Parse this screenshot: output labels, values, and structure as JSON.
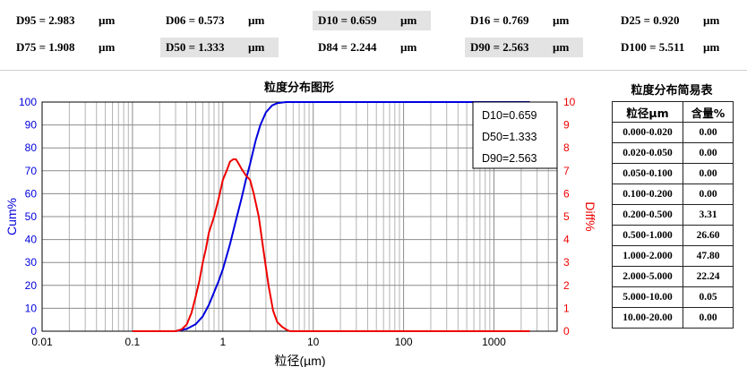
{
  "stats": [
    {
      "label": "D95 = 2.983",
      "unit": "µm",
      "highlight": false
    },
    {
      "label": "D06 = 0.573",
      "unit": "µm",
      "highlight": false
    },
    {
      "label": "D10 = 0.659",
      "unit": "µm",
      "highlight": true
    },
    {
      "label": "D16 = 0.769",
      "unit": "µm",
      "highlight": false
    },
    {
      "label": "D25 = 0.920",
      "unit": "µm",
      "highlight": false
    },
    {
      "label": "D75 = 1.908",
      "unit": "µm",
      "highlight": false
    },
    {
      "label": "D50 = 1.333",
      "unit": "µm",
      "highlight": true
    },
    {
      "label": "D84 = 2.244",
      "unit": "µm",
      "highlight": false
    },
    {
      "label": "D90 = 2.563",
      "unit": "µm",
      "highlight": true
    },
    {
      "label": "D100 = 5.511",
      "unit": "µm",
      "highlight": false
    }
  ],
  "chart_data": {
    "type": "line",
    "title": "粒度分布图形",
    "xlabel": "粒径(µm)",
    "ylabel_left": "Cum%",
    "ylabel_right": "Diff%",
    "x_scale": "log",
    "xlim": [
      0.01,
      5000
    ],
    "x_ticks": [
      "0.01",
      "0.1",
      "1",
      "10",
      "100",
      "1000"
    ],
    "ylim_left": [
      0,
      100
    ],
    "ylim_right": [
      0,
      10
    ],
    "y_ticks_left": [
      "0",
      "10",
      "20",
      "30",
      "40",
      "50",
      "60",
      "70",
      "80",
      "90",
      "100"
    ],
    "y_ticks_right": [
      "0",
      "1",
      "2",
      "3",
      "4",
      "5",
      "6",
      "7",
      "8",
      "9",
      "10"
    ],
    "grid": true,
    "annotations": [
      "D10=0.659",
      "D50=1.333",
      "D90=2.563"
    ],
    "series": [
      {
        "axis": "left",
        "color": "#0000dd",
        "x": [
          0.1,
          0.3,
          0.4,
          0.5,
          0.6,
          0.7,
          0.8,
          0.9,
          1.0,
          1.2,
          1.4,
          1.6,
          1.8,
          2.0,
          2.3,
          2.6,
          3.0,
          3.5,
          4.0,
          5.0,
          6.0,
          10,
          100,
          1000,
          2500
        ],
        "y": [
          0,
          0,
          1,
          3,
          6.5,
          11.5,
          17,
          22,
          27,
          38,
          48.5,
          57.5,
          66,
          73,
          83,
          90,
          95.5,
          98.5,
          99.5,
          100,
          100,
          100,
          100,
          100,
          100
        ]
      },
      {
        "axis": "right",
        "color": "#ee0000",
        "x": [
          0.1,
          0.3,
          0.35,
          0.4,
          0.45,
          0.5,
          0.55,
          0.6,
          0.65,
          0.7,
          0.8,
          0.9,
          1.0,
          1.1,
          1.2,
          1.3,
          1.4,
          1.5,
          1.6,
          1.8,
          2.0,
          2.2,
          2.5,
          2.8,
          3.2,
          3.6,
          4.0,
          4.5,
          5.0,
          5.5,
          10,
          100,
          1000,
          2500
        ],
        "y": [
          0,
          0,
          0.08,
          0.3,
          0.8,
          1.5,
          2.2,
          3.0,
          3.6,
          4.3,
          5.0,
          5.8,
          6.6,
          7.0,
          7.4,
          7.5,
          7.5,
          7.3,
          7.1,
          6.8,
          6.6,
          6.0,
          5.0,
          3.6,
          2.0,
          0.9,
          0.4,
          0.2,
          0.08,
          0,
          0,
          0,
          0,
          0
        ]
      }
    ]
  },
  "table": {
    "title": "粒度分布简易表",
    "headers": [
      "粒径µm",
      "含量%"
    ],
    "rows": [
      [
        "0.000-0.020",
        "0.00"
      ],
      [
        "0.020-0.050",
        "0.00"
      ],
      [
        "0.050-0.100",
        "0.00"
      ],
      [
        "0.100-0.200",
        "0.00"
      ],
      [
        "0.200-0.500",
        "3.31"
      ],
      [
        "0.500-1.000",
        "26.60"
      ],
      [
        "1.000-2.000",
        "47.80"
      ],
      [
        "2.000-5.000",
        "22.24"
      ],
      [
        "5.000-10.00",
        "0.05"
      ],
      [
        "10.00-20.00",
        "0.00"
      ]
    ]
  }
}
